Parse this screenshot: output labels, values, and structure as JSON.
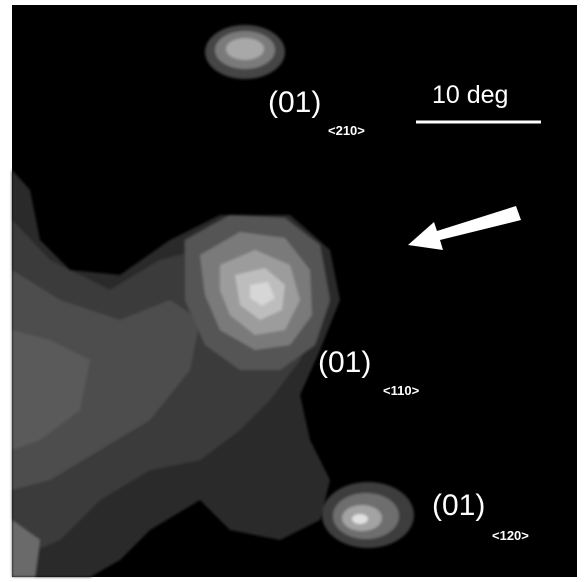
{
  "labels": [
    {
      "text": "(01)",
      "subscript": "<210>"
    },
    {
      "text": "(01)",
      "subscript": "<110>"
    },
    {
      "text": "(01)",
      "subscript": "<120>"
    }
  ],
  "scale_bar": {
    "label": "10 deg"
  }
}
